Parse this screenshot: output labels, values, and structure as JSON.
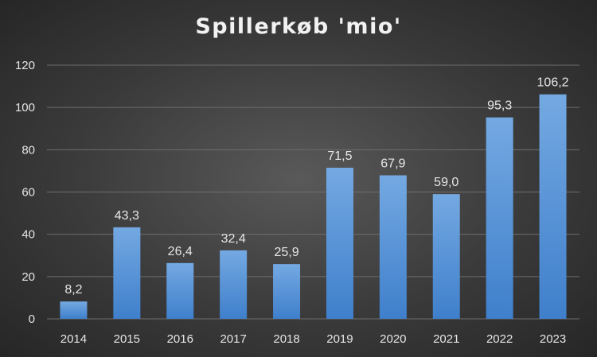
{
  "chart_data": {
    "type": "bar",
    "title": "Spillerkøb 'mio'",
    "categories": [
      "2014",
      "2015",
      "2016",
      "2017",
      "2018",
      "2019",
      "2020",
      "2021",
      "2022",
      "2023"
    ],
    "values": [
      8.2,
      43.3,
      26.4,
      32.4,
      25.9,
      71.5,
      67.9,
      59.0,
      95.3,
      106.2
    ],
    "data_labels": [
      "8,2",
      "43,3",
      "26,4",
      "32,4",
      "25,9",
      "71,5",
      "67,9",
      "59,0",
      "95,3",
      "106,2"
    ],
    "y_ticks": [
      "0",
      "20",
      "40",
      "60",
      "80",
      "100",
      "120"
    ],
    "ylim": [
      0,
      120
    ],
    "xlabel": "",
    "ylabel": "",
    "grid": true,
    "legend": "none",
    "colors": {
      "bar_top": "#74a9e2",
      "bar_bottom": "#3f7fcb",
      "gridline": "#6e6e6e",
      "text": "#e6e6e6"
    }
  }
}
